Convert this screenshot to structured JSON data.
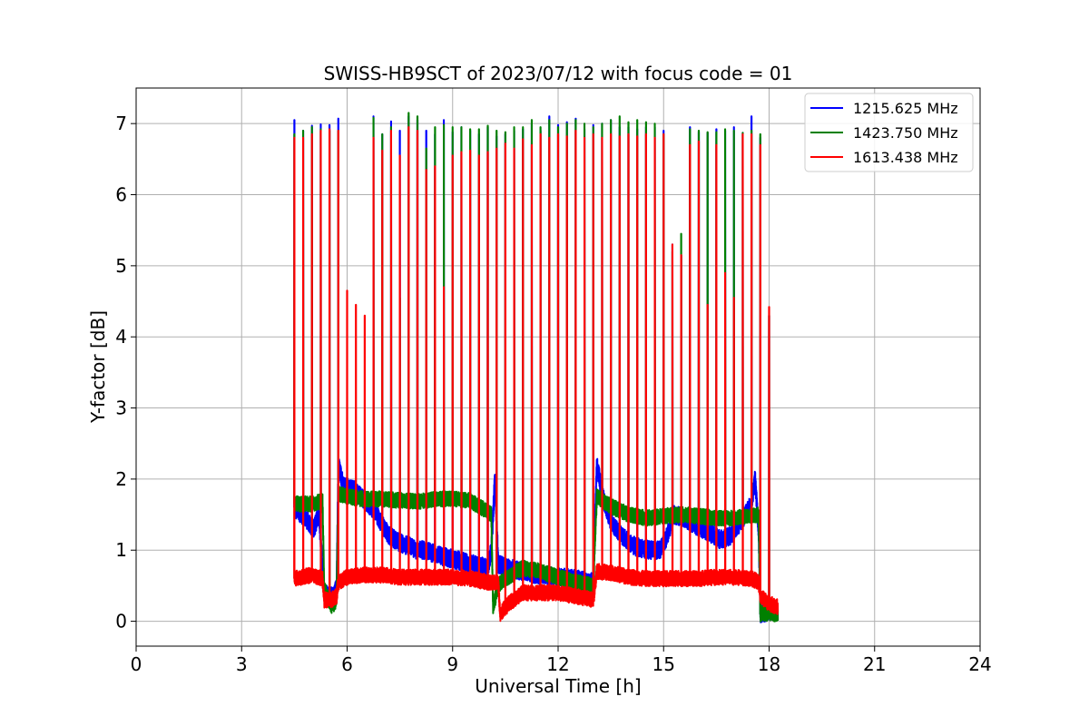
{
  "chart_data": {
    "type": "line",
    "title": "SWISS-HB9SCT of 2023/07/12 with focus code = 01",
    "xlabel": "Universal Time [h]",
    "ylabel": "Y-factor [dB]",
    "xlim": [
      0,
      24
    ],
    "ylim": [
      -0.35,
      7.5
    ],
    "xticks": [
      0,
      3,
      6,
      9,
      12,
      15,
      18,
      21,
      24
    ],
    "yticks": [
      0,
      1,
      2,
      3,
      4,
      5,
      6,
      7
    ],
    "grid": true,
    "legend_position": "top-right",
    "series": [
      {
        "name": "1215.625 MHz",
        "color": "#0000ff",
        "baseline": [
          [
            4.5,
            1.6
          ],
          [
            4.7,
            1.5
          ],
          [
            4.9,
            1.4
          ],
          [
            5.05,
            1.3
          ],
          [
            5.2,
            1.5
          ],
          [
            5.35,
            0.4
          ],
          [
            5.55,
            0.35
          ],
          [
            5.7,
            0.45
          ],
          [
            5.75,
            2.2
          ],
          [
            5.9,
            1.9
          ],
          [
            6.2,
            1.85
          ],
          [
            6.5,
            1.7
          ],
          [
            6.8,
            1.55
          ],
          [
            7.0,
            1.35
          ],
          [
            7.2,
            1.2
          ],
          [
            7.5,
            1.1
          ],
          [
            7.8,
            1.05
          ],
          [
            8.0,
            1.0
          ],
          [
            8.2,
            1.0
          ],
          [
            8.5,
            0.95
          ],
          [
            8.8,
            0.9
          ],
          [
            9.2,
            0.85
          ],
          [
            9.6,
            0.8
          ],
          [
            10.0,
            0.75
          ],
          [
            10.1,
            1.0
          ],
          [
            10.2,
            2.0
          ],
          [
            10.3,
            0.8
          ],
          [
            10.6,
            0.75
          ],
          [
            11.0,
            0.7
          ],
          [
            11.5,
            0.65
          ],
          [
            12.0,
            0.62
          ],
          [
            12.5,
            0.6
          ],
          [
            13.0,
            0.55
          ],
          [
            13.1,
            2.2
          ],
          [
            13.3,
            1.7
          ],
          [
            13.5,
            1.4
          ],
          [
            13.8,
            1.2
          ],
          [
            14.2,
            1.05
          ],
          [
            14.6,
            1.0
          ],
          [
            14.9,
            1.0
          ],
          [
            15.1,
            1.2
          ],
          [
            15.3,
            1.5
          ],
          [
            15.6,
            1.45
          ],
          [
            15.9,
            1.35
          ],
          [
            16.3,
            1.25
          ],
          [
            16.6,
            1.15
          ],
          [
            16.9,
            1.2
          ],
          [
            17.2,
            1.4
          ],
          [
            17.5,
            1.65
          ],
          [
            17.6,
            2.0
          ],
          [
            17.7,
            1.3
          ],
          [
            17.75,
            0.1
          ],
          [
            17.9,
            0.12
          ],
          [
            18.1,
            0.15
          ],
          [
            18.25,
            0.15
          ]
        ],
        "amplitude": 0.13,
        "peaks": [
          [
            4.5,
            7.05
          ],
          [
            4.75,
            6.9
          ],
          [
            5.0,
            6.97
          ],
          [
            5.25,
            6.99
          ],
          [
            5.5,
            6.98
          ],
          [
            5.75,
            7.07
          ],
          [
            6.75,
            7.1
          ],
          [
            7.0,
            6.85
          ],
          [
            7.25,
            7.03
          ],
          [
            7.5,
            6.9
          ],
          [
            7.75,
            7.1
          ],
          [
            8.0,
            7.05
          ],
          [
            8.25,
            6.9
          ],
          [
            8.5,
            6.85
          ],
          [
            8.75,
            7.05
          ],
          [
            9.0,
            6.88
          ],
          [
            9.25,
            6.95
          ],
          [
            9.5,
            6.9
          ],
          [
            9.75,
            6.85
          ],
          [
            10.0,
            6.95
          ],
          [
            10.25,
            6.82
          ],
          [
            10.5,
            6.85
          ],
          [
            10.75,
            6.9
          ],
          [
            11.0,
            6.92
          ],
          [
            11.25,
            7.0
          ],
          [
            11.5,
            6.9
          ],
          [
            11.75,
            7.1
          ],
          [
            12.0,
            6.98
          ],
          [
            12.25,
            7.02
          ],
          [
            12.5,
            7.07
          ],
          [
            12.75,
            6.92
          ],
          [
            13.0,
            6.98
          ],
          [
            13.25,
            7.0
          ],
          [
            13.5,
            7.05
          ],
          [
            13.75,
            6.95
          ],
          [
            14.0,
            6.95
          ],
          [
            14.25,
            6.92
          ],
          [
            14.5,
            6.95
          ],
          [
            14.75,
            6.95
          ],
          [
            15.0,
            6.9
          ],
          [
            15.25,
            5.3
          ],
          [
            15.5,
            5.15
          ],
          [
            15.75,
            6.95
          ],
          [
            16.0,
            6.88
          ],
          [
            16.25,
            6.87
          ],
          [
            16.5,
            6.92
          ],
          [
            16.75,
            6.9
          ],
          [
            17.0,
            6.95
          ],
          [
            17.25,
            6.87
          ],
          [
            17.5,
            7.1
          ],
          [
            17.75,
            6.8
          ],
          [
            18.0,
            4.3
          ]
        ]
      },
      {
        "name": "1423.750 MHz",
        "color": "#008000",
        "baseline": [
          [
            4.5,
            1.65
          ],
          [
            5.0,
            1.65
          ],
          [
            5.3,
            1.7
          ],
          [
            5.35,
            0.45
          ],
          [
            5.55,
            0.2
          ],
          [
            5.7,
            0.3
          ],
          [
            5.75,
            1.8
          ],
          [
            6.0,
            1.75
          ],
          [
            6.5,
            1.72
          ],
          [
            7.0,
            1.72
          ],
          [
            7.5,
            1.7
          ],
          [
            8.0,
            1.68
          ],
          [
            8.5,
            1.72
          ],
          [
            9.0,
            1.72
          ],
          [
            9.5,
            1.7
          ],
          [
            9.8,
            1.6
          ],
          [
            10.1,
            1.5
          ],
          [
            10.15,
            0.2
          ],
          [
            10.3,
            0.5
          ],
          [
            10.5,
            0.6
          ],
          [
            11.0,
            0.75
          ],
          [
            11.5,
            0.7
          ],
          [
            12.0,
            0.62
          ],
          [
            12.5,
            0.55
          ],
          [
            13.0,
            0.5
          ],
          [
            13.1,
            1.75
          ],
          [
            13.5,
            1.62
          ],
          [
            14.0,
            1.5
          ],
          [
            14.5,
            1.45
          ],
          [
            15.0,
            1.48
          ],
          [
            15.5,
            1.5
          ],
          [
            16.0,
            1.48
          ],
          [
            16.5,
            1.45
          ],
          [
            17.0,
            1.45
          ],
          [
            17.5,
            1.48
          ],
          [
            17.7,
            1.5
          ],
          [
            17.75,
            0.1
          ],
          [
            18.0,
            0.12
          ],
          [
            18.25,
            0.1
          ]
        ],
        "amplitude": 0.11,
        "peaks": [
          [
            4.5,
            6.85
          ],
          [
            4.75,
            6.9
          ],
          [
            5.0,
            6.95
          ],
          [
            5.25,
            6.92
          ],
          [
            5.5,
            6.9
          ],
          [
            5.75,
            6.9
          ],
          [
            6.75,
            7.08
          ],
          [
            7.0,
            6.85
          ],
          [
            7.25,
            6.95
          ],
          [
            7.5,
            4.55
          ],
          [
            7.75,
            7.15
          ],
          [
            8.0,
            7.1
          ],
          [
            8.25,
            6.65
          ],
          [
            8.5,
            6.95
          ],
          [
            8.75,
            6.98
          ],
          [
            9.0,
            6.95
          ],
          [
            9.25,
            6.95
          ],
          [
            9.5,
            6.92
          ],
          [
            9.75,
            6.92
          ],
          [
            10.0,
            6.97
          ],
          [
            10.25,
            6.9
          ],
          [
            10.5,
            6.88
          ],
          [
            10.75,
            6.95
          ],
          [
            11.0,
            6.95
          ],
          [
            11.25,
            7.05
          ],
          [
            11.5,
            6.95
          ],
          [
            11.75,
            7.05
          ],
          [
            12.0,
            6.95
          ],
          [
            12.25,
            7.0
          ],
          [
            12.5,
            7.05
          ],
          [
            12.75,
            7.0
          ],
          [
            13.0,
            6.95
          ],
          [
            13.25,
            7.0
          ],
          [
            13.5,
            7.05
          ],
          [
            13.75,
            7.1
          ],
          [
            14.0,
            7.02
          ],
          [
            14.25,
            7.05
          ],
          [
            14.5,
            7.02
          ],
          [
            14.75,
            7.0
          ],
          [
            15.0,
            6.85
          ],
          [
            15.25,
            5.2
          ],
          [
            15.5,
            5.45
          ],
          [
            15.75,
            6.92
          ],
          [
            16.0,
            6.9
          ],
          [
            16.25,
            6.88
          ],
          [
            16.5,
            6.88
          ],
          [
            16.75,
            6.92
          ],
          [
            17.0,
            6.9
          ],
          [
            17.25,
            6.87
          ],
          [
            17.5,
            6.9
          ],
          [
            17.75,
            6.85
          ],
          [
            18.0,
            4.3
          ]
        ]
      },
      {
        "name": "1613.438 MHz",
        "color": "#ff0000",
        "baseline": [
          [
            4.5,
            0.6
          ],
          [
            5.0,
            0.65
          ],
          [
            5.3,
            0.6
          ],
          [
            5.35,
            0.3
          ],
          [
            5.55,
            0.3
          ],
          [
            5.7,
            0.35
          ],
          [
            5.75,
            0.55
          ],
          [
            6.0,
            0.62
          ],
          [
            6.5,
            0.65
          ],
          [
            7.0,
            0.65
          ],
          [
            7.5,
            0.62
          ],
          [
            8.0,
            0.62
          ],
          [
            8.5,
            0.62
          ],
          [
            9.0,
            0.62
          ],
          [
            9.5,
            0.6
          ],
          [
            10.0,
            0.55
          ],
          [
            10.3,
            0.55
          ],
          [
            10.35,
            0.1
          ],
          [
            10.6,
            0.25
          ],
          [
            11.0,
            0.4
          ],
          [
            11.5,
            0.4
          ],
          [
            12.0,
            0.4
          ],
          [
            12.5,
            0.35
          ],
          [
            13.0,
            0.3
          ],
          [
            13.1,
            0.7
          ],
          [
            13.5,
            0.68
          ],
          [
            14.0,
            0.62
          ],
          [
            14.5,
            0.6
          ],
          [
            15.0,
            0.6
          ],
          [
            15.5,
            0.6
          ],
          [
            16.0,
            0.6
          ],
          [
            16.5,
            0.62
          ],
          [
            17.0,
            0.62
          ],
          [
            17.5,
            0.6
          ],
          [
            17.7,
            0.55
          ],
          [
            17.75,
            0.35
          ],
          [
            18.0,
            0.25
          ],
          [
            18.25,
            0.2
          ]
        ],
        "amplitude": 0.11,
        "peaks": [
          [
            4.5,
            6.8
          ],
          [
            4.75,
            6.8
          ],
          [
            5.0,
            6.85
          ],
          [
            5.25,
            6.9
          ],
          [
            5.5,
            6.92
          ],
          [
            5.75,
            6.9
          ],
          [
            6.0,
            4.65
          ],
          [
            6.25,
            4.45
          ],
          [
            6.5,
            4.3
          ],
          [
            6.75,
            6.8
          ],
          [
            7.0,
            6.62
          ],
          [
            7.25,
            6.9
          ],
          [
            7.5,
            6.55
          ],
          [
            7.75,
            6.95
          ],
          [
            8.0,
            6.9
          ],
          [
            8.25,
            6.35
          ],
          [
            8.5,
            6.4
          ],
          [
            8.75,
            4.7
          ],
          [
            9.0,
            6.55
          ],
          [
            9.25,
            6.6
          ],
          [
            9.5,
            6.62
          ],
          [
            9.75,
            6.55
          ],
          [
            10.0,
            6.6
          ],
          [
            10.25,
            6.65
          ],
          [
            10.5,
            6.72
          ],
          [
            10.75,
            6.65
          ],
          [
            11.0,
            6.78
          ],
          [
            11.25,
            6.7
          ],
          [
            11.5,
            6.85
          ],
          [
            11.75,
            6.8
          ],
          [
            12.0,
            6.85
          ],
          [
            12.25,
            6.82
          ],
          [
            12.5,
            6.9
          ],
          [
            12.75,
            6.8
          ],
          [
            13.0,
            6.85
          ],
          [
            13.25,
            6.8
          ],
          [
            13.5,
            6.85
          ],
          [
            13.75,
            6.82
          ],
          [
            14.0,
            6.85
          ],
          [
            14.25,
            6.82
          ],
          [
            14.5,
            6.85
          ],
          [
            14.75,
            6.8
          ],
          [
            15.0,
            6.85
          ],
          [
            15.25,
            5.3
          ],
          [
            15.5,
            5.15
          ],
          [
            15.75,
            6.7
          ],
          [
            16.0,
            6.75
          ],
          [
            16.25,
            4.45
          ],
          [
            16.5,
            6.7
          ],
          [
            16.75,
            4.9
          ],
          [
            17.0,
            4.55
          ],
          [
            17.25,
            6.85
          ],
          [
            17.5,
            6.85
          ],
          [
            17.75,
            6.7
          ],
          [
            18.0,
            4.42
          ]
        ]
      }
    ]
  }
}
